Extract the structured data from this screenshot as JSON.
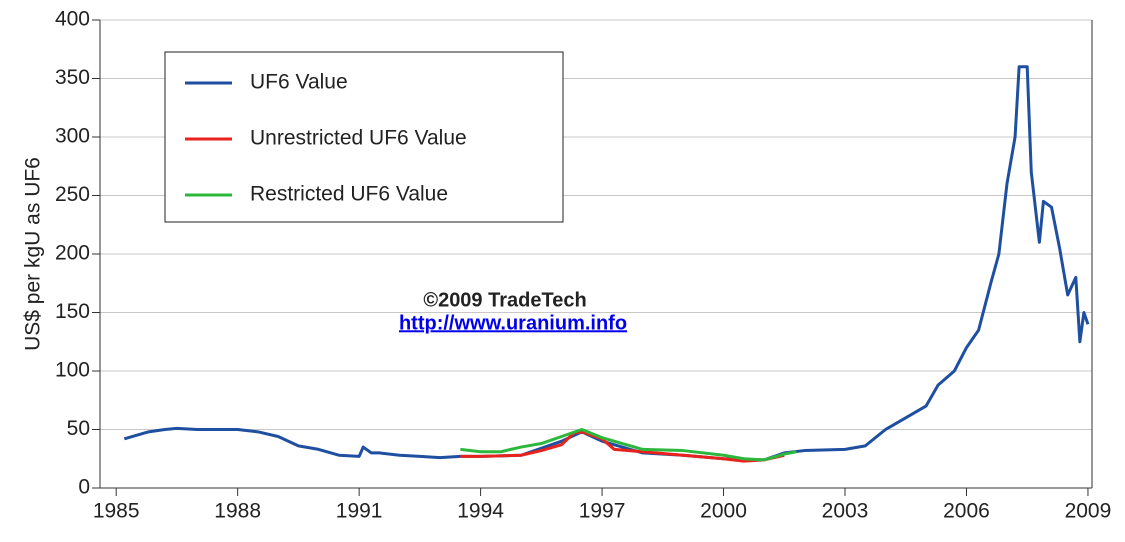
{
  "chart_data": {
    "type": "line",
    "y_label": "US$ per kgU as UF6",
    "annotations": [
      "©2009 TradeTech",
      "http://www.uranium.info"
    ],
    "xlim": [
      1984.6,
      2009.1
    ],
    "xticks": [
      1985,
      1988,
      1991,
      1994,
      1997,
      2000,
      2003,
      2006,
      2009
    ],
    "ylim": [
      0,
      400
    ],
    "yticks": [
      0,
      50,
      100,
      150,
      200,
      250,
      300,
      350,
      400
    ],
    "grid": true,
    "legend": "upper left",
    "series": [
      {
        "name": "UF6 Value",
        "color": "#1f4fa0",
        "x": [
          1985.2,
          1985.5,
          1985.8,
          1986.2,
          1986.5,
          1987,
          1988,
          1988.5,
          1989,
          1989.5,
          1990,
          1990.5,
          1991,
          1991.1,
          1991.3,
          1991.5,
          1992,
          1992.5,
          1993,
          1993.5,
          1994,
          1995,
          1996,
          1996.5,
          1997,
          1998,
          1999,
          2000,
          2001,
          2001.5,
          2002,
          2003,
          2003.5,
          2004,
          2004.5,
          2005,
          2005.3,
          2005.7,
          2006,
          2006.3,
          2006.6,
          2006.8,
          2007,
          2007.2,
          2007.3,
          2007.5,
          2007.6,
          2007.8,
          2007.9,
          2008.1,
          2008.3,
          2008.5,
          2008.7,
          2008.8,
          2008.9,
          2009
        ],
        "values": [
          42,
          45,
          48,
          50,
          51,
          50,
          50,
          48,
          44,
          36,
          33,
          28,
          27,
          35,
          30,
          30,
          28,
          27,
          26,
          27,
          27,
          28,
          40,
          48,
          40,
          30,
          28,
          25,
          24,
          30,
          32,
          33,
          36,
          50,
          60,
          70,
          88,
          100,
          120,
          135,
          175,
          200,
          260,
          300,
          360,
          360,
          270,
          210,
          245,
          240,
          205,
          165,
          180,
          125,
          150,
          140
        ]
      },
      {
        "name": "Unrestricted UF6 Value",
        "color": "#e8231d",
        "x": [
          1993.5,
          1994,
          1995,
          1995.5,
          1996,
          1996.3,
          1996.5,
          1997,
          1997.3,
          1998,
          1999,
          2000,
          2000.5,
          2001,
          2001.5
        ],
        "values": [
          27,
          27,
          28,
          32,
          37,
          47,
          48,
          42,
          33,
          31,
          28,
          25,
          23,
          24,
          28
        ]
      },
      {
        "name": "Restricted UF6 Value",
        "color": "#2db83d",
        "x": [
          1993.5,
          1994,
          1994.5,
          1995,
          1995.5,
          1996,
          1996.5,
          1997,
          1997.5,
          1998,
          1999,
          2000,
          2000.5,
          2001,
          2001.5,
          2001.8
        ],
        "values": [
          33,
          31,
          31,
          35,
          38,
          44,
          50,
          43,
          38,
          33,
          32,
          28,
          25,
          24,
          29,
          31
        ]
      }
    ]
  }
}
